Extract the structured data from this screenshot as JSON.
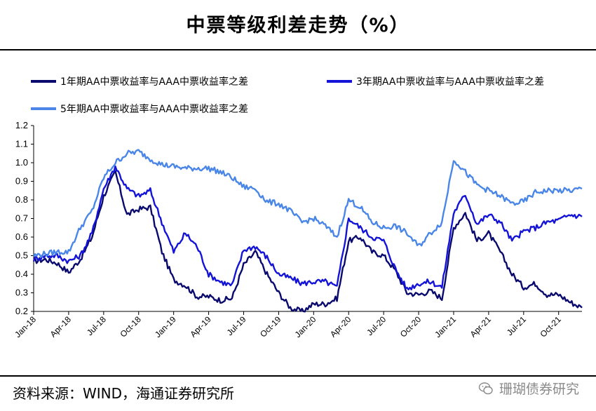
{
  "title": "中票等级利差走势（%）",
  "source": "资料来源：WIND，海通证券研究所",
  "watermark": "珊瑚债券研究",
  "colors": {
    "series1": "#0a0a6e",
    "series2": "#1414d8",
    "series3": "#4a86e8"
  },
  "chart_data": {
    "type": "line",
    "title": "",
    "xlabel": "",
    "ylabel": "",
    "ylim": [
      0.2,
      1.2
    ],
    "yticks": [
      "1.2",
      "1.1",
      "1.0",
      "0.9",
      "0.8",
      "0.7",
      "0.6",
      "0.5",
      "0.4",
      "0.3",
      "0.2"
    ],
    "xticks": [
      "Jan-18",
      "Apr-18",
      "Jul-18",
      "Oct-18",
      "Jan-19",
      "Apr-19",
      "Jul-19",
      "Oct-19",
      "Jan-20",
      "Apr-20",
      "Jul-20",
      "Oct-20",
      "Jan-21",
      "Apr-21",
      "Jul-21",
      "Oct-21"
    ],
    "x": [
      "Jan-18",
      "Feb-18",
      "Mar-18",
      "Apr-18",
      "May-18",
      "Jun-18",
      "Jul-18",
      "Aug-18",
      "Sep-18",
      "Oct-18",
      "Nov-18",
      "Dec-18",
      "Jan-19",
      "Feb-19",
      "Mar-19",
      "Apr-19",
      "May-19",
      "Jun-19",
      "Jul-19",
      "Aug-19",
      "Sep-19",
      "Oct-19",
      "Nov-19",
      "Dec-19",
      "Jan-20",
      "Feb-20",
      "Mar-20",
      "Apr-20",
      "May-20",
      "Jun-20",
      "Jul-20",
      "Aug-20",
      "Sep-20",
      "Oct-20",
      "Nov-20",
      "Dec-20",
      "Jan-21",
      "Feb-21",
      "Mar-21",
      "Apr-21",
      "May-21",
      "Jun-21",
      "Jul-21",
      "Aug-21",
      "Sep-21",
      "Oct-21",
      "Nov-21",
      "Dec-21"
    ],
    "grid": false,
    "legend_position": "top",
    "series": [
      {
        "name": "1年期AA中票收益率与AAA中票收益率之差",
        "values": [
          0.47,
          0.48,
          0.46,
          0.41,
          0.48,
          0.6,
          0.82,
          0.95,
          0.72,
          0.75,
          0.76,
          0.52,
          0.37,
          0.34,
          0.28,
          0.28,
          0.26,
          0.27,
          0.45,
          0.52,
          0.4,
          0.3,
          0.22,
          0.2,
          0.24,
          0.24,
          0.27,
          0.58,
          0.6,
          0.52,
          0.5,
          0.42,
          0.3,
          0.29,
          0.31,
          0.27,
          0.65,
          0.73,
          0.58,
          0.62,
          0.52,
          0.4,
          0.33,
          0.35,
          0.29,
          0.29,
          0.25,
          0.22
        ]
      },
      {
        "name": "3年期AA中票收益率与AAA中票收益率之差",
        "values": [
          0.48,
          0.5,
          0.5,
          0.47,
          0.5,
          0.62,
          0.86,
          0.98,
          0.86,
          0.82,
          0.85,
          0.68,
          0.52,
          0.62,
          0.55,
          0.4,
          0.36,
          0.34,
          0.53,
          0.55,
          0.49,
          0.4,
          0.38,
          0.35,
          0.36,
          0.36,
          0.33,
          0.7,
          0.65,
          0.6,
          0.58,
          0.43,
          0.32,
          0.35,
          0.36,
          0.33,
          0.73,
          0.83,
          0.67,
          0.72,
          0.68,
          0.58,
          0.63,
          0.65,
          0.68,
          0.69,
          0.72,
          0.71
        ]
      },
      {
        "name": "5年期AA中票收益率与AAA中票收益率之差",
        "values": [
          0.5,
          0.51,
          0.52,
          0.52,
          0.65,
          0.74,
          0.92,
          1.0,
          1.05,
          1.06,
          1.02,
          0.99,
          0.98,
          0.97,
          0.97,
          0.97,
          0.95,
          0.92,
          0.87,
          0.86,
          0.79,
          0.78,
          0.74,
          0.68,
          0.7,
          0.66,
          0.6,
          0.8,
          0.76,
          0.68,
          0.65,
          0.66,
          0.62,
          0.55,
          0.62,
          0.68,
          1.02,
          0.95,
          0.88,
          0.85,
          0.82,
          0.78,
          0.79,
          0.84,
          0.85,
          0.85,
          0.85,
          0.86
        ]
      }
    ]
  }
}
